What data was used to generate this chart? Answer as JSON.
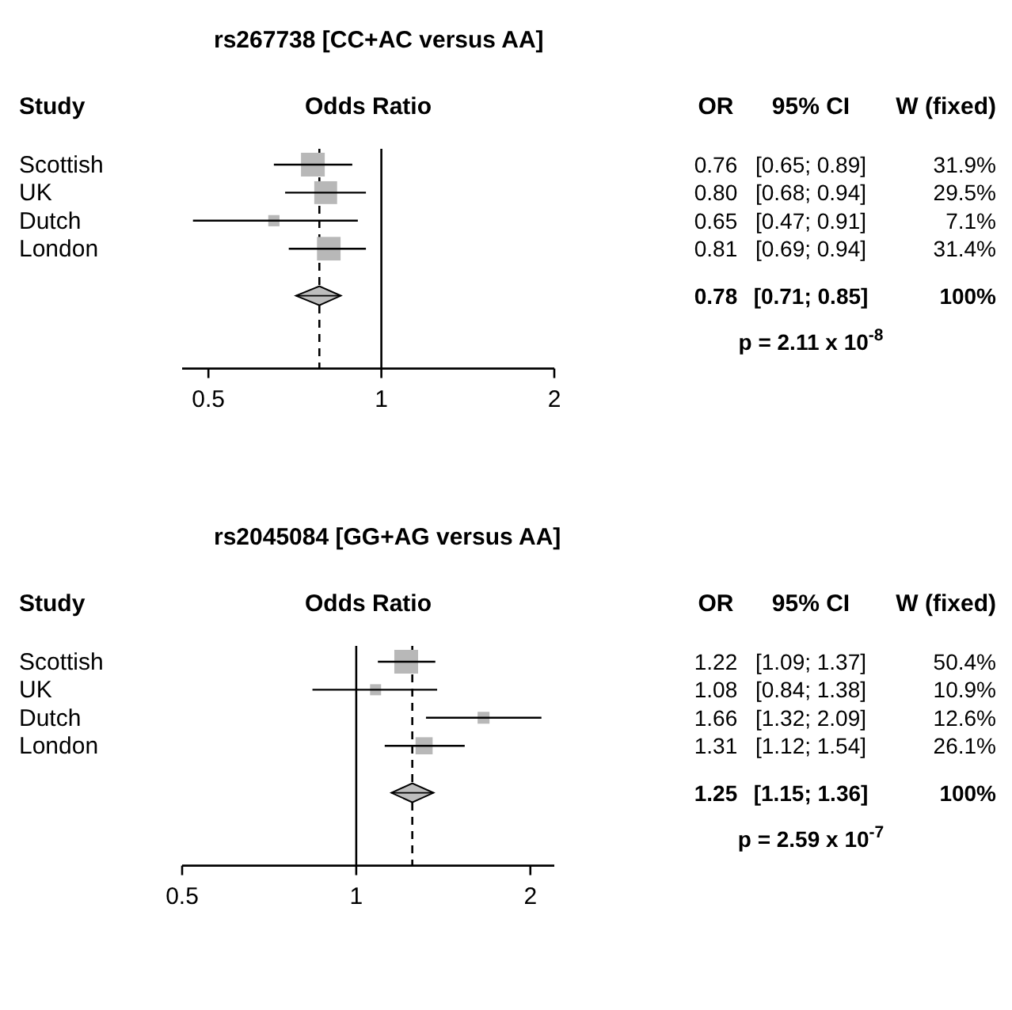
{
  "chart_data": [
    {
      "type": "scatter",
      "orientation": "horizontal",
      "title": "rs267738 [CC+AC versus AA]",
      "categories": [
        "Scottish",
        "UK",
        "Dutch",
        "London",
        null
      ],
      "log": "x",
      "xlim": [
        0.45,
        2
      ],
      "xticks": [
        0.5,
        1,
        2
      ],
      "grid": false,
      "series": [
        {
          "color": "#b8b8b8",
          "marker": "square",
          "values": [
            0.76,
            0.8,
            0.65,
            0.81,
            null
          ],
          "errors": [
            [
              0.65,
              0.89
            ],
            [
              0.68,
              0.94
            ],
            [
              0.47,
              0.91
            ],
            [
              0.69,
              0.94
            ],
            null
          ],
          "sizes": [
            1,
            0.925,
            0.223,
            0.984,
            null
          ]
        },
        {
          "color": "#bdbdbd",
          "marker": "diamond",
          "values": [
            null,
            null,
            null,
            null,
            0.78
          ],
          "errors": [
            null,
            null,
            null,
            null,
            [
              0.71,
              0.85
            ]
          ]
        }
      ],
      "ref_lines": [
        {
          "axis": "x",
          "value": 1,
          "line_style": "solid",
          "color": "#000000"
        },
        {
          "axis": "x",
          "value": 0.78,
          "line_style": "dashed",
          "color": "#000000"
        }
      ],
      "annotations": [
        "Study",
        "Odds Ratio",
        "OR",
        "95% CI",
        "W (fixed)",
        "0.76",
        "[0.65; 0.89]",
        "31.9%",
        "0.80",
        "[0.68; 0.94]",
        "29.5%",
        "0.65",
        "[0.47; 0.91]",
        "7.1%",
        "0.81",
        "[0.69; 0.94]",
        "31.4%",
        "0.78",
        "[0.71; 0.85]",
        "100%",
        "p = 2.11 x 10$^{-8}$"
      ]
    },
    {
      "type": "scatter",
      "orientation": "horizontal",
      "title": "rs2045084 [GG+AG versus AA]",
      "categories": [
        "Scottish",
        "UK",
        "Dutch",
        "London",
        null
      ],
      "log": "x",
      "xlim": [
        0.5,
        2.2
      ],
      "xticks": [
        0.5,
        1,
        2
      ],
      "grid": false,
      "series": [
        {
          "color": "#b8b8b8",
          "marker": "square",
          "values": [
            1.22,
            1.08,
            1.66,
            1.31,
            null
          ],
          "errors": [
            [
              1.09,
              1.37
            ],
            [
              0.84,
              1.38
            ],
            [
              1.32,
              2.09
            ],
            [
              1.12,
              1.54
            ],
            null
          ],
          "sizes": [
            1,
            0.216,
            0.25,
            0.518,
            null
          ]
        },
        {
          "color": "#bdbdbd",
          "marker": "diamond",
          "values": [
            null,
            null,
            null,
            null,
            1.25
          ],
          "errors": [
            null,
            null,
            null,
            null,
            [
              1.15,
              1.36
            ]
          ]
        }
      ],
      "ref_lines": [
        {
          "axis": "x",
          "value": 1,
          "line_style": "solid",
          "color": "#000000"
        },
        {
          "axis": "x",
          "value": 1.25,
          "line_style": "dashed",
          "color": "#000000"
        }
      ],
      "annotations": [
        "Study",
        "Odds Ratio",
        "OR",
        "95% CI",
        "W (fixed)",
        "1.22",
        "[1.09; 1.37]",
        "50.4%",
        "1.08",
        "[0.84; 1.38]",
        "10.9%",
        "1.66",
        "[1.32; 2.09]",
        "12.6%",
        "1.31",
        "[1.12; 1.54]",
        "26.1%",
        "1.25",
        "[1.15; 1.36]",
        "100%",
        "p = 2.59 x 10$^{-7}$"
      ]
    }
  ]
}
